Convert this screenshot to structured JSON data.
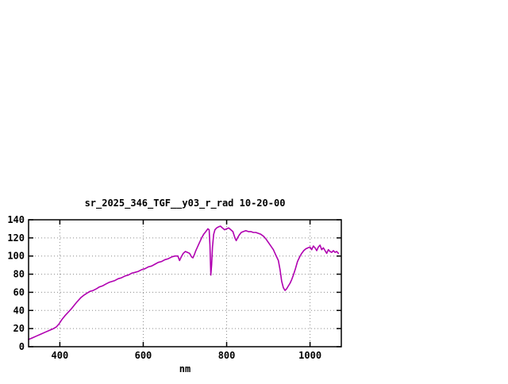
{
  "chart_data": {
    "type": "line",
    "title": "sr_2025_346_TGF__y03_r_rad 10-20-00",
    "xlabel": "nm",
    "ylabel": "",
    "xlim": [
      325,
      1075
    ],
    "ylim": [
      0,
      140
    ],
    "x_ticks": [
      400,
      600,
      800,
      1000
    ],
    "y_ticks": [
      0,
      20,
      40,
      60,
      80,
      100,
      120,
      140
    ],
    "grid": true,
    "legend": "none",
    "line_color": "#b000b0",
    "series": [
      {
        "points": [
          [
            325,
            8
          ],
          [
            335,
            10
          ],
          [
            345,
            12
          ],
          [
            355,
            14
          ],
          [
            365,
            16
          ],
          [
            375,
            18
          ],
          [
            385,
            20
          ],
          [
            392,
            22
          ],
          [
            398,
            25
          ],
          [
            405,
            30
          ],
          [
            412,
            34
          ],
          [
            420,
            38
          ],
          [
            428,
            42
          ],
          [
            435,
            46
          ],
          [
            442,
            50
          ],
          [
            450,
            54
          ],
          [
            458,
            57
          ],
          [
            465,
            59
          ],
          [
            472,
            61
          ],
          [
            480,
            62
          ],
          [
            488,
            64
          ],
          [
            495,
            66
          ],
          [
            502,
            67
          ],
          [
            510,
            69
          ],
          [
            518,
            71
          ],
          [
            525,
            72
          ],
          [
            532,
            73
          ],
          [
            540,
            75
          ],
          [
            548,
            76
          ],
          [
            556,
            78
          ],
          [
            564,
            79
          ],
          [
            572,
            81
          ],
          [
            580,
            82
          ],
          [
            588,
            83
          ],
          [
            596,
            85
          ],
          [
            604,
            86
          ],
          [
            612,
            88
          ],
          [
            620,
            89
          ],
          [
            628,
            91
          ],
          [
            636,
            93
          ],
          [
            644,
            94
          ],
          [
            652,
            96
          ],
          [
            660,
            97
          ],
          [
            668,
            99
          ],
          [
            676,
            100
          ],
          [
            683,
            100
          ],
          [
            687,
            95
          ],
          [
            691,
            99
          ],
          [
            696,
            103
          ],
          [
            701,
            105
          ],
          [
            706,
            104
          ],
          [
            711,
            103
          ],
          [
            716,
            99
          ],
          [
            719,
            98
          ],
          [
            722,
            101
          ],
          [
            726,
            106
          ],
          [
            730,
            110
          ],
          [
            735,
            115
          ],
          [
            740,
            120
          ],
          [
            745,
            124
          ],
          [
            750,
            127
          ],
          [
            755,
            130
          ],
          [
            758,
            129
          ],
          [
            760,
            112
          ],
          [
            762,
            79
          ],
          [
            764,
            90
          ],
          [
            766,
            110
          ],
          [
            769,
            124
          ],
          [
            772,
            129
          ],
          [
            776,
            131
          ],
          [
            780,
            132
          ],
          [
            785,
            133
          ],
          [
            790,
            131
          ],
          [
            795,
            129
          ],
          [
            800,
            130
          ],
          [
            805,
            131
          ],
          [
            810,
            129
          ],
          [
            815,
            127
          ],
          [
            820,
            120
          ],
          [
            823,
            117
          ],
          [
            826,
            120
          ],
          [
            830,
            123
          ],
          [
            835,
            126
          ],
          [
            840,
            127
          ],
          [
            846,
            128
          ],
          [
            852,
            127
          ],
          [
            858,
            127
          ],
          [
            864,
            126
          ],
          [
            870,
            126
          ],
          [
            876,
            125
          ],
          [
            882,
            124
          ],
          [
            888,
            122
          ],
          [
            894,
            119
          ],
          [
            900,
            115
          ],
          [
            906,
            111
          ],
          [
            912,
            107
          ],
          [
            918,
            101
          ],
          [
            924,
            95
          ],
          [
            928,
            85
          ],
          [
            932,
            72
          ],
          [
            936,
            65
          ],
          [
            940,
            62
          ],
          [
            944,
            64
          ],
          [
            948,
            67
          ],
          [
            952,
            70
          ],
          [
            956,
            74
          ],
          [
            960,
            79
          ],
          [
            965,
            86
          ],
          [
            970,
            94
          ],
          [
            975,
            99
          ],
          [
            980,
            103
          ],
          [
            985,
            106
          ],
          [
            990,
            108
          ],
          [
            995,
            109
          ],
          [
            1000,
            110
          ],
          [
            1004,
            107
          ],
          [
            1008,
            111
          ],
          [
            1012,
            109
          ],
          [
            1016,
            106
          ],
          [
            1020,
            110
          ],
          [
            1024,
            112
          ],
          [
            1028,
            107
          ],
          [
            1032,
            109
          ],
          [
            1036,
            106
          ],
          [
            1040,
            103
          ],
          [
            1044,
            107
          ],
          [
            1048,
            105
          ],
          [
            1052,
            104
          ],
          [
            1056,
            106
          ],
          [
            1060,
            104
          ],
          [
            1064,
            105
          ],
          [
            1068,
            103
          ]
        ]
      }
    ]
  }
}
